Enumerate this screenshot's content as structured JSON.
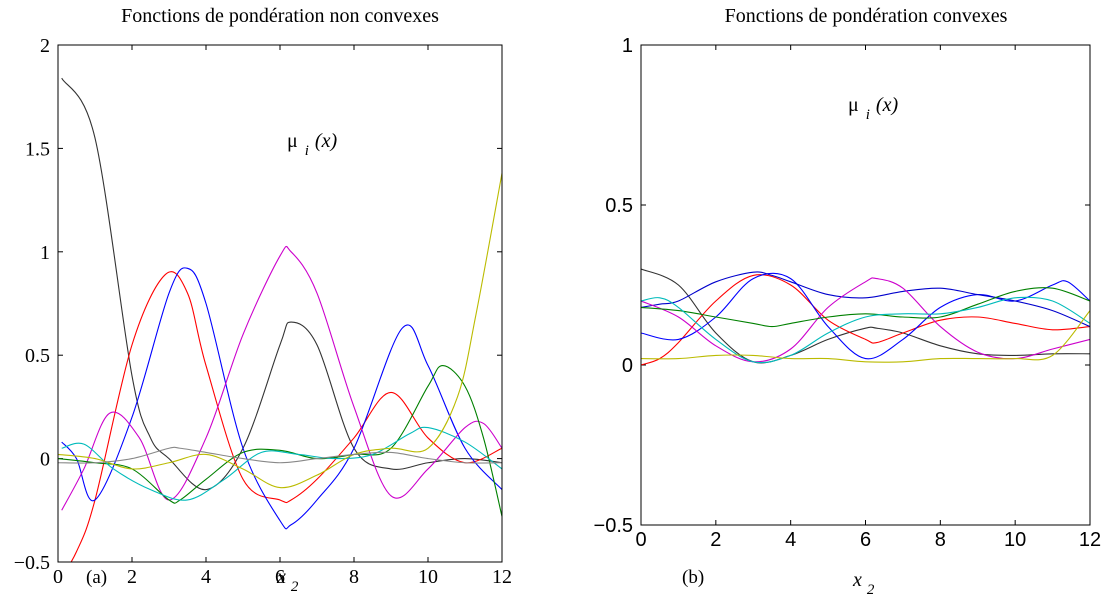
{
  "chart_data": [
    {
      "type": "line",
      "title": "Fonctions de pondération non convexes",
      "xlabel_main": "x",
      "xlabel_sub": "2",
      "panel_label": "(a)",
      "annotation": {
        "base": "μ",
        "sub": "i",
        "args": "(x)"
      },
      "xlim": [
        0,
        12
      ],
      "ylim": [
        -0.5,
        2
      ],
      "xticks": [
        0,
        2,
        4,
        6,
        8,
        10,
        12
      ],
      "yticks": [
        -0.5,
        0,
        0.5,
        1,
        1.5,
        2
      ],
      "ytick_labels": [
        "−0.5",
        "0",
        "0.5",
        "1",
        "1.5",
        "2"
      ],
      "grid": false,
      "series": [
        {
          "color": "#333333",
          "x": [
            0.1,
            1,
            2,
            2.5,
            3,
            4,
            5,
            6,
            6.3,
            7,
            8,
            9,
            10,
            11,
            12
          ],
          "y": [
            1.84,
            1.55,
            0.4,
            0.1,
            0,
            -0.15,
            0.05,
            0.55,
            0.66,
            0.55,
            0.05,
            -0.05,
            -0.02,
            0,
            -0.02
          ]
        },
        {
          "color": "#ff0000",
          "x": [
            0,
            0.5,
            1,
            2,
            2.9,
            3.5,
            4,
            5,
            6,
            6.3,
            7,
            8,
            9,
            10,
            11,
            12
          ],
          "y": [
            -0.6,
            -0.45,
            -0.2,
            0.55,
            0.89,
            0.8,
            0.45,
            -0.1,
            -0.2,
            -0.2,
            -0.1,
            0.1,
            0.32,
            0.1,
            -0.02,
            0.05
          ]
        },
        {
          "color": "#0000ff",
          "x": [
            0.1,
            0.5,
            1,
            2,
            3,
            3.5,
            4,
            5,
            6,
            6.3,
            7,
            8,
            9.3,
            10,
            11,
            12
          ],
          "y": [
            0.08,
            0,
            -0.2,
            0.2,
            0.8,
            0.92,
            0.75,
            0.05,
            -0.3,
            -0.32,
            -0.2,
            0.05,
            0.63,
            0.45,
            0.05,
            -0.15
          ]
        },
        {
          "color": "#cc00cc",
          "x": [
            0.1,
            0.7,
            1.4,
            2.2,
            3,
            4,
            5,
            6,
            6.3,
            7,
            8,
            9,
            10,
            11,
            11.5,
            12
          ],
          "y": [
            -0.25,
            -0.05,
            0.22,
            0.1,
            -0.2,
            0.1,
            0.6,
            0.98,
            1.0,
            0.8,
            0.25,
            -0.18,
            -0.05,
            0.15,
            0.17,
            0.05
          ]
        },
        {
          "color": "#008000",
          "x": [
            0,
            1,
            2,
            3,
            3.3,
            4,
            5,
            6,
            7,
            8,
            9,
            10,
            10.4,
            11,
            11.5,
            12
          ],
          "y": [
            0,
            -0.02,
            -0.05,
            -0.2,
            -0.2,
            -0.1,
            0.03,
            0.04,
            0,
            0.02,
            0.05,
            0.35,
            0.45,
            0.35,
            0.1,
            -0.28
          ]
        },
        {
          "color": "#00bbbb",
          "x": [
            0.1,
            0.7,
            1.5,
            2.5,
            3.5,
            4.5,
            5.5,
            6.5,
            7.5,
            8.5,
            9.5,
            10,
            11,
            12
          ],
          "y": [
            0.05,
            0.07,
            -0.05,
            -0.15,
            -0.2,
            -0.1,
            0.03,
            0.02,
            0,
            0.02,
            0.12,
            0.15,
            0.08,
            -0.05
          ]
        },
        {
          "color": "#bbbb00",
          "x": [
            0,
            1,
            2,
            3,
            4,
            5,
            6,
            7,
            8,
            9,
            10,
            10.8,
            11.3,
            12
          ],
          "y": [
            0.02,
            0,
            -0.05,
            -0.02,
            0.02,
            -0.05,
            -0.14,
            -0.08,
            0.02,
            0.05,
            0.05,
            0.3,
            0.7,
            1.38
          ]
        },
        {
          "color": "#888888",
          "x": [
            0,
            1,
            2,
            3,
            3.3,
            4,
            5,
            6,
            7,
            8,
            9,
            10,
            11,
            12
          ],
          "y": [
            -0.02,
            -0.02,
            0,
            0.05,
            0.05,
            0.03,
            0,
            -0.02,
            0,
            0.02,
            0.03,
            0,
            -0.02,
            -0.02
          ]
        }
      ]
    },
    {
      "type": "line",
      "title": "Fonctions de pondération convexes",
      "xlabel_main": "x",
      "xlabel_sub": "2",
      "panel_label": "(b)",
      "annotation": {
        "base": "μ",
        "sub": "i",
        "args": "(x)"
      },
      "xlim": [
        0,
        12
      ],
      "ylim": [
        -0.5,
        1
      ],
      "xticks": [
        0,
        2,
        4,
        6,
        8,
        10,
        12
      ],
      "yticks": [
        -0.5,
        0,
        0.5,
        1
      ],
      "ytick_labels": [
        "−0.5",
        "0",
        "0.5",
        "1"
      ],
      "grid": false,
      "series": [
        {
          "color": "#333333",
          "x": [
            0,
            1,
            2,
            3,
            4,
            5,
            6,
            6.3,
            7,
            8,
            9,
            10,
            11,
            12
          ],
          "y": [
            0.3,
            0.25,
            0.1,
            0.01,
            0.03,
            0.08,
            0.115,
            0.115,
            0.1,
            0.06,
            0.035,
            0.03,
            0.035,
            0.035
          ]
        },
        {
          "color": "#ff0000",
          "x": [
            0,
            0.5,
            1,
            2,
            3,
            4,
            5,
            6,
            6.3,
            7,
            8,
            9,
            10,
            11,
            12
          ],
          "y": [
            0,
            0.02,
            0.07,
            0.2,
            0.28,
            0.25,
            0.14,
            0.08,
            0.07,
            0.1,
            0.14,
            0.15,
            0.13,
            0.11,
            0.12
          ]
        },
        {
          "color": "#0000ff",
          "x": [
            0,
            1,
            2,
            3,
            4,
            5,
            6,
            7,
            8,
            9,
            10,
            11,
            11.4,
            12
          ],
          "y": [
            0.1,
            0.08,
            0.15,
            0.27,
            0.27,
            0.12,
            0.02,
            0.08,
            0.18,
            0.22,
            0.2,
            0.25,
            0.26,
            0.2
          ]
        },
        {
          "color": "#0000cc",
          "x": [
            0,
            0.5,
            1,
            2,
            3,
            3.5,
            4,
            5,
            6,
            7,
            8,
            9,
            10,
            11,
            12
          ],
          "y": [
            0.18,
            0.19,
            0.2,
            0.26,
            0.29,
            0.28,
            0.26,
            0.22,
            0.21,
            0.23,
            0.24,
            0.22,
            0.2,
            0.17,
            0.12
          ]
        },
        {
          "color": "#cc00cc",
          "x": [
            0,
            1,
            2,
            3,
            4,
            5,
            6,
            6.3,
            7,
            8,
            9,
            10,
            11,
            12
          ],
          "y": [
            0.2,
            0.15,
            0.06,
            0.01,
            0.05,
            0.18,
            0.26,
            0.27,
            0.24,
            0.12,
            0.04,
            0.02,
            0.05,
            0.08
          ]
        },
        {
          "color": "#008000",
          "x": [
            0,
            1,
            2,
            3,
            3.5,
            4,
            5,
            6,
            7,
            8,
            9,
            10,
            11,
            12
          ],
          "y": [
            0.18,
            0.17,
            0.15,
            0.13,
            0.12,
            0.13,
            0.15,
            0.16,
            0.15,
            0.15,
            0.19,
            0.23,
            0.24,
            0.2
          ]
        },
        {
          "color": "#00bbbb",
          "x": [
            0,
            0.5,
            1,
            2,
            3,
            4,
            5,
            6,
            7,
            8,
            9,
            10,
            11,
            12
          ],
          "y": [
            0.2,
            0.21,
            0.18,
            0.08,
            0.01,
            0.03,
            0.1,
            0.15,
            0.16,
            0.16,
            0.18,
            0.21,
            0.2,
            0.13
          ]
        },
        {
          "color": "#bbbb00",
          "x": [
            0,
            1,
            2,
            3,
            4,
            5,
            6,
            7,
            8,
            9,
            10,
            11,
            12
          ],
          "y": [
            0.02,
            0.02,
            0.03,
            0.03,
            0.02,
            0.02,
            0.01,
            0.01,
            0.02,
            0.02,
            0.02,
            0.03,
            0.17
          ]
        }
      ]
    }
  ]
}
